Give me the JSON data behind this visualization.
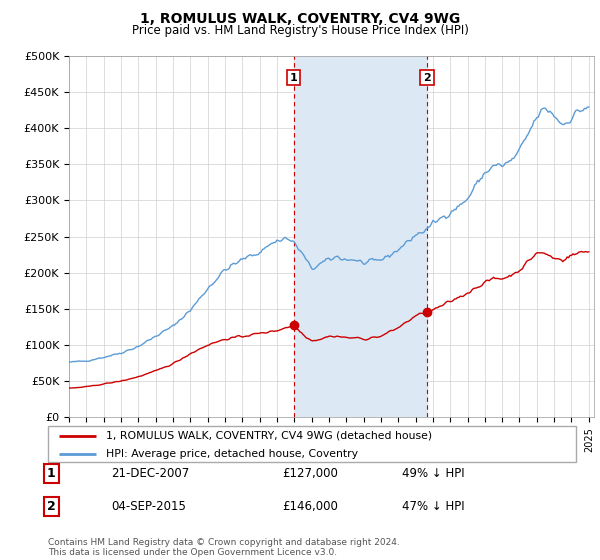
{
  "title": "1, ROMULUS WALK, COVENTRY, CV4 9WG",
  "subtitle": "Price paid vs. HM Land Registry's House Price Index (HPI)",
  "ylabel_ticks": [
    "£0",
    "£50K",
    "£100K",
    "£150K",
    "£200K",
    "£250K",
    "£300K",
    "£350K",
    "£400K",
    "£450K",
    "£500K"
  ],
  "y_values": [
    0,
    50000,
    100000,
    150000,
    200000,
    250000,
    300000,
    350000,
    400000,
    450000,
    500000
  ],
  "hpi_color": "#5b9bd5",
  "hpi_fill_color": "#dce9f5",
  "price_color": "#cc0000",
  "marker_color": "#cc0000",
  "vline_color": "#cc0000",
  "box_color": "#cc0000",
  "background_color": "#ffffff",
  "chart_bg": "#ffffff",
  "grid_color": "#d0d0d0",
  "legend_label_red": "1, ROMULUS WALK, COVENTRY, CV4 9WG (detached house)",
  "legend_label_blue": "HPI: Average price, detached house, Coventry",
  "transaction1_date": "21-DEC-2007",
  "transaction1_price": 127000,
  "transaction1_pct": "49% ↓ HPI",
  "transaction1_year": 2007.97,
  "transaction2_date": "04-SEP-2015",
  "transaction2_price": 146000,
  "transaction2_pct": "47% ↓ HPI",
  "transaction2_year": 2015.67,
  "footer": "Contains HM Land Registry data © Crown copyright and database right 2024.\nThis data is licensed under the Open Government Licence v3.0."
}
